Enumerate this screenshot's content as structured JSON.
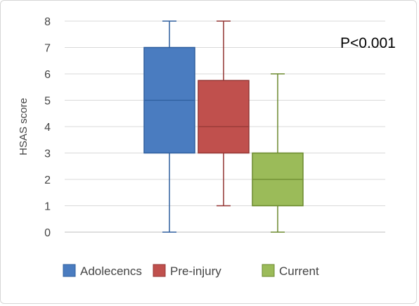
{
  "chart_data": {
    "type": "box",
    "ylabel": "HSAS score",
    "ylim": [
      0,
      8
    ],
    "yticks": [
      "0",
      "1",
      "2",
      "3",
      "4",
      "5",
      "6",
      "7",
      "8"
    ],
    "grid": true,
    "legend_position": "bottom",
    "annotation": "P<0.001",
    "series": [
      {
        "name": "Adolecencs",
        "min": 0,
        "q1": 3,
        "median": 5,
        "q3": 7,
        "max": 8,
        "color": "#4a7cc0",
        "edge": "#2f5f9e"
      },
      {
        "name": "Pre-injury",
        "min": 1,
        "q1": 3,
        "median": 4,
        "q3": 5.75,
        "max": 8,
        "color": "#c0504d",
        "edge": "#943634"
      },
      {
        "name": "Current",
        "min": 0,
        "q1": 1,
        "median": 2,
        "q3": 3,
        "max": 6,
        "color": "#9bbb59",
        "edge": "#6b8a2f"
      }
    ]
  }
}
